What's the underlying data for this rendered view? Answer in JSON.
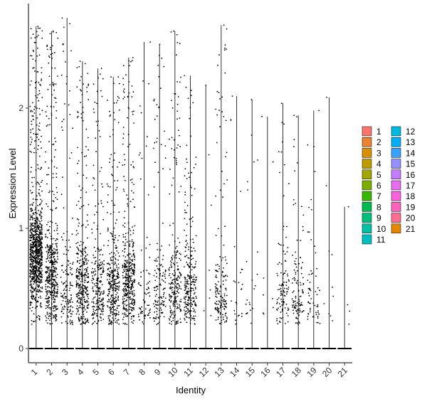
{
  "chart_data": {
    "type": "violin-jitter",
    "xlabel": "Identity",
    "ylabel": "Expression Level",
    "ylim": [
      0,
      2.8
    ],
    "yticks": [
      0,
      1,
      2
    ],
    "categories": [
      "1",
      "2",
      "3",
      "4",
      "5",
      "6",
      "7",
      "8",
      "9",
      "10",
      "11",
      "12",
      "13",
      "14",
      "15",
      "16",
      "17",
      "18",
      "19",
      "20",
      "21"
    ],
    "series_colors": [
      "#F8766D",
      "#EA8331",
      "#D89000",
      "#C09B00",
      "#A3A500",
      "#7CAE00",
      "#39B600",
      "#00BB4E",
      "#00BF7D",
      "#00C1A3",
      "#00BFC4",
      "#00BAE0",
      "#00B0F6",
      "#35A2FF",
      "#9590FF",
      "#C77CFF",
      "#E76BF3",
      "#FA62DB",
      "#FF62BC",
      "#FF6C91",
      "#E58700"
    ],
    "max_values": [
      2.68,
      2.64,
      2.75,
      2.39,
      2.33,
      2.26,
      2.42,
      2.55,
      2.53,
      2.64,
      2.27,
      2.19,
      2.69,
      2.1,
      2.07,
      1.93,
      2.04,
      1.94,
      1.98,
      2.09,
      1.18
    ],
    "point_counts": [
      900,
      480,
      150,
      360,
      240,
      330,
      410,
      70,
      140,
      230,
      250,
      8,
      160,
      25,
      22,
      8,
      110,
      110,
      60,
      10,
      4
    ],
    "grid": false,
    "legend_position": "right"
  }
}
